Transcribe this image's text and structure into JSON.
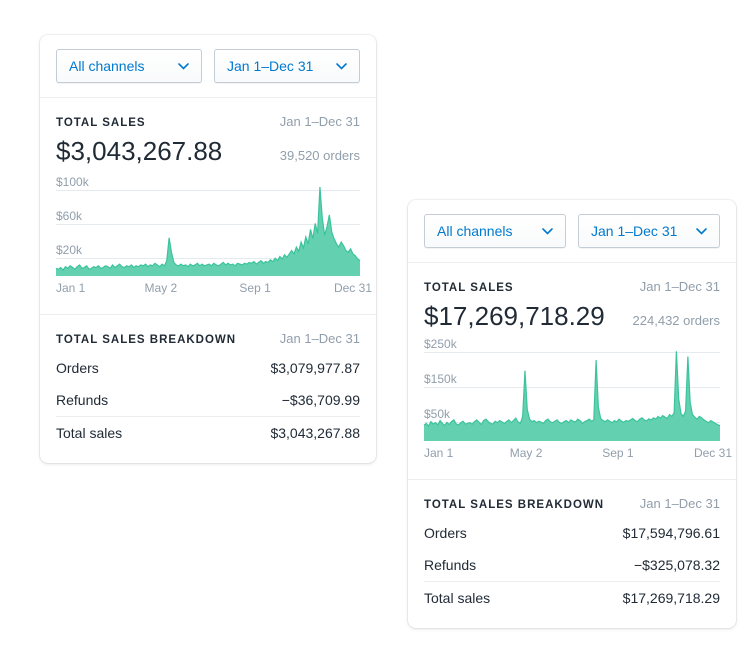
{
  "colors": {
    "accent_link": "#007ace",
    "chart_fill": "#63d1b0",
    "chart_line": "#3cc39c",
    "text": "#212b36",
    "subdued_text": "#919eab"
  },
  "cards": [
    {
      "controls": {
        "channel": "All channels",
        "date": "Jan 1–Dec 31"
      },
      "total_sales": {
        "label": "TOTAL SALES",
        "date": "Jan 1–Dec 31",
        "amount": "$3,043,267.88",
        "orders": "39,520 orders"
      },
      "breakdown": {
        "label": "TOTAL SALES BREAKDOWN",
        "date": "Jan 1–Dec 31",
        "rows": [
          {
            "label": "Orders",
            "value": "$3,079,977.87"
          },
          {
            "label": "Refunds",
            "value": "−$36,709.99"
          },
          {
            "label": "Total sales",
            "value": "$3,043,267.88"
          }
        ]
      }
    },
    {
      "controls": {
        "channel": "All channels",
        "date": "Jan 1–Dec 31"
      },
      "total_sales": {
        "label": "TOTAL SALES",
        "date": "Jan 1–Dec 31",
        "amount": "$17,269,718.29",
        "orders": "224,432 orders"
      },
      "breakdown": {
        "label": "TOTAL SALES BREAKDOWN",
        "date": "Jan 1–Dec 31",
        "rows": [
          {
            "label": "Orders",
            "value": "$17,594,796.61"
          },
          {
            "label": "Refunds",
            "value": "−$325,078.32"
          },
          {
            "label": "Total sales",
            "value": "$17,269,718.29"
          }
        ]
      }
    }
  ],
  "chart_data": [
    {
      "type": "area",
      "unit": "USD thousands",
      "ymax_k": 112,
      "yticks": [
        {
          "value_k": 20,
          "label": "$20k"
        },
        {
          "value_k": 60,
          "label": "$60k"
        },
        {
          "value_k": 100,
          "label": "$100k"
        }
      ],
      "xticks": [
        {
          "pos": 0,
          "label": "Jan 1"
        },
        {
          "pos": 0.345,
          "label": "May 2"
        },
        {
          "pos": 0.655,
          "label": "Sep 1"
        },
        {
          "pos": 1,
          "label": "Dec 31"
        }
      ],
      "fill": "#63d1b0",
      "stroke": "#3cc39c",
      "grid": true,
      "values_k": [
        9,
        8,
        10,
        7,
        11,
        9,
        12,
        10,
        8,
        11,
        13,
        9,
        10,
        12,
        8,
        9,
        11,
        10,
        12,
        9,
        10,
        12,
        11,
        9,
        13,
        10,
        12,
        14,
        11,
        10,
        12,
        11,
        13,
        10,
        12,
        11,
        13,
        12,
        14,
        11,
        13,
        12,
        15,
        13,
        11,
        14,
        12,
        18,
        45,
        28,
        16,
        13,
        12,
        14,
        12,
        13,
        11,
        14,
        12,
        13,
        15,
        12,
        14,
        12,
        13,
        14,
        12,
        15,
        13,
        12,
        14,
        16,
        13,
        15,
        13,
        14,
        12,
        15,
        14,
        13,
        15,
        14,
        16,
        15,
        17,
        14,
        16,
        18,
        15,
        17,
        16,
        19,
        17,
        21,
        18,
        23,
        20,
        25,
        22,
        26,
        30,
        26,
        34,
        29,
        40,
        33,
        46,
        38,
        55,
        44,
        62,
        50,
        105,
        68,
        48,
        58,
        72,
        52,
        44,
        38,
        34,
        40,
        36,
        30,
        28,
        32,
        26,
        24,
        20,
        18
      ]
    },
    {
      "type": "area",
      "unit": "USD thousands",
      "ymax_k": 270,
      "yticks": [
        {
          "value_k": 50,
          "label": "$50k"
        },
        {
          "value_k": 150,
          "label": "$150k"
        },
        {
          "value_k": 250,
          "label": "$250k"
        }
      ],
      "xticks": [
        {
          "pos": 0,
          "label": "Jan 1"
        },
        {
          "pos": 0.345,
          "label": "May 2"
        },
        {
          "pos": 0.655,
          "label": "Sep 1"
        },
        {
          "pos": 1,
          "label": "Dec 31"
        }
      ],
      "fill": "#63d1b0",
      "stroke": "#3cc39c",
      "grid": true,
      "values_k": [
        45,
        50,
        42,
        55,
        48,
        52,
        46,
        58,
        50,
        44,
        53,
        47,
        55,
        60,
        49,
        45,
        52,
        56,
        48,
        50,
        52,
        48,
        55,
        60,
        53,
        47,
        58,
        62,
        55,
        50,
        48,
        56,
        52,
        58,
        54,
        50,
        55,
        60,
        52,
        58,
        65,
        54,
        50,
        70,
        200,
        90,
        62,
        55,
        58,
        52,
        56,
        54,
        50,
        58,
        62,
        55,
        52,
        56,
        60,
        53,
        50,
        55,
        58,
        52,
        60,
        56,
        54,
        62,
        58,
        50,
        55,
        58,
        62,
        56,
        60,
        230,
        95,
        64,
        58,
        55,
        60,
        56,
        52,
        58,
        54,
        62,
        57,
        53,
        58,
        56,
        60,
        64,
        58,
        55,
        62,
        66,
        60,
        57,
        63,
        60,
        66,
        62,
        70,
        65,
        72,
        68,
        64,
        75,
        70,
        80,
        255,
        120,
        78,
        70,
        85,
        240,
        110,
        75,
        68,
        62,
        70,
        66,
        60,
        56,
        52,
        58,
        54,
        50,
        46,
        44
      ]
    }
  ]
}
